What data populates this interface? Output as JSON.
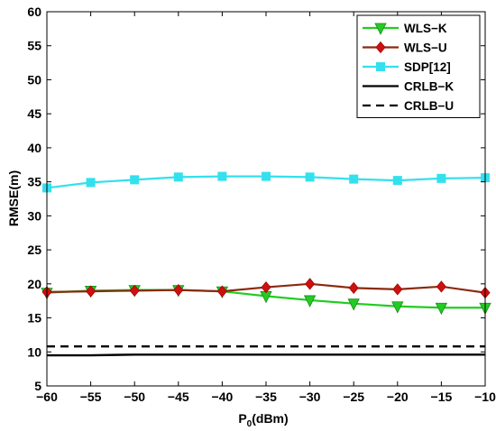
{
  "chart_data": {
    "type": "line",
    "xlabel_main": "P",
    "xlabel_sub": "0",
    "xlabel_rest": "(dBm)",
    "ylabel": "RMSE(m)",
    "xlim": [
      -60,
      -10
    ],
    "ylim": [
      5,
      60
    ],
    "xticks": [
      -60,
      -55,
      -50,
      -45,
      -40,
      -35,
      -30,
      -25,
      -20,
      -15,
      -10
    ],
    "yticks": [
      5,
      10,
      15,
      20,
      25,
      30,
      35,
      40,
      45,
      50,
      55,
      60
    ],
    "grid": false,
    "legend_position": "top-right",
    "x": [
      -60,
      -55,
      -50,
      -45,
      -40,
      -35,
      -30,
      -25,
      -20,
      -15,
      -10
    ],
    "series": [
      {
        "name": "WLS−K",
        "color": "#22cc22",
        "marker": "triangle-down",
        "dash": "solid",
        "values": [
          18.7,
          19.0,
          19.1,
          19.1,
          18.9,
          18.2,
          17.6,
          17.1,
          16.7,
          16.5,
          16.5
        ]
      },
      {
        "name": "WLS−U",
        "color": "#cc1111",
        "line_color": "#8a2a10",
        "marker": "diamond",
        "dash": "solid",
        "values": [
          18.8,
          18.9,
          19.0,
          19.1,
          18.9,
          19.5,
          20.0,
          19.4,
          19.2,
          19.6,
          18.7
        ]
      },
      {
        "name": "SDP[12]",
        "color": "#33e0ee",
        "marker": "square",
        "dash": "solid",
        "values": [
          34.1,
          34.9,
          35.3,
          35.7,
          35.8,
          35.8,
          35.7,
          35.4,
          35.2,
          35.5,
          35.6
        ]
      },
      {
        "name": "CRLB−K",
        "color": "#000000",
        "marker": "none",
        "dash": "solid",
        "values": [
          9.5,
          9.5,
          9.6,
          9.6,
          9.6,
          9.6,
          9.6,
          9.6,
          9.6,
          9.6,
          9.6
        ]
      },
      {
        "name": "CRLB−U",
        "color": "#000000",
        "marker": "none",
        "dash": "dashed",
        "values": [
          10.8,
          10.8,
          10.8,
          10.8,
          10.8,
          10.8,
          10.8,
          10.8,
          10.8,
          10.8,
          10.8
        ]
      }
    ]
  }
}
